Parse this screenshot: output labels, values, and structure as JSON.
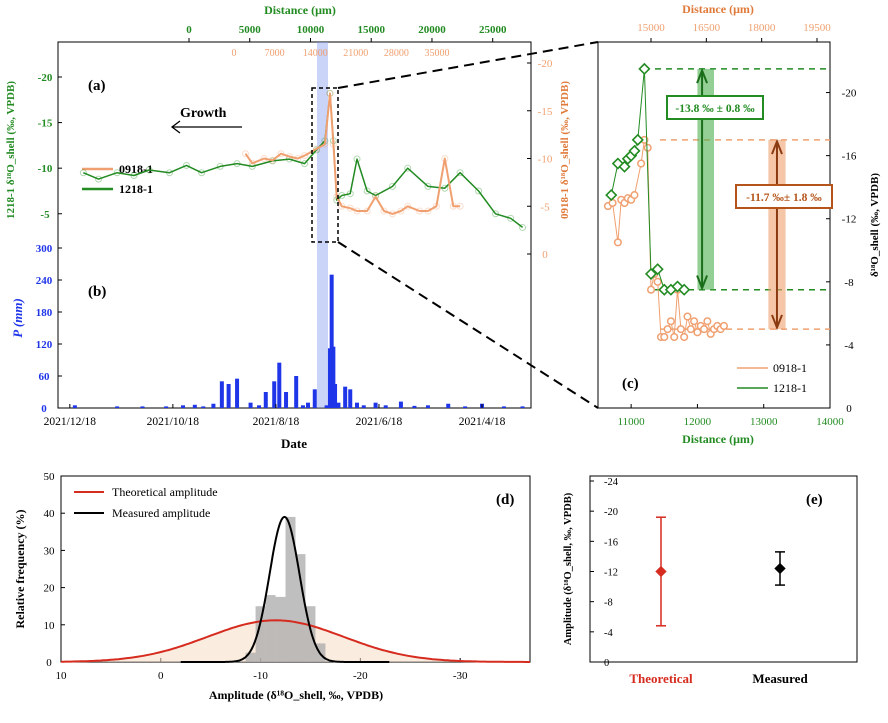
{
  "colors": {
    "c0918": "#f0a070",
    "c1218": "#228b22",
    "precip": "#1f35e8",
    "shade": "#8a9df0",
    "red": "#d62b1f",
    "black": "#000000",
    "amp_green_bar": "#4caf50",
    "amp_orange_bar": "#f0a070",
    "label_orange_text": "#b5541a"
  },
  "chart_data": [
    {
      "id": "a",
      "panel_label": "(a)",
      "type": "line",
      "x_top_label": "Distance (μm)",
      "x_top_ticks": [
        "0",
        "5000",
        "10000",
        "15000",
        "20000",
        "25000"
      ],
      "x_top2_ticks": [
        "0",
        "7000",
        "14000",
        "21000",
        "28000",
        "35000"
      ],
      "y_left_label": "1218-1 δ¹⁸O_shell (‰, VPDB)",
      "y_left_ticks": [
        "-20",
        "-15",
        "-10",
        "-5"
      ],
      "y_right_label": "0918-1 δ¹⁸O_shell (‰, VPDB)",
      "y_right_ticks": [
        "-20",
        "-15",
        "-10",
        "-5",
        "0"
      ],
      "annotation_growth": "Growth",
      "legend": [
        "0918-1",
        "1218-1"
      ],
      "series_1218": {
        "name": "1218-1",
        "x_date": [
          "2021-12-10",
          "2021-12-01",
          "2021-11-20",
          "2021-11-10",
          "2021-11-01",
          "2021-10-20",
          "2021-10-10",
          "2021-10-01",
          "2021-09-20",
          "2021-09-10",
          "2021-09-01",
          "2021-08-20",
          "2021-08-10",
          "2021-08-01",
          "2021-07-25",
          "2021-07-20",
          "2021-07-17",
          "2021-07-15",
          "2021-07-13",
          "2021-07-10",
          "2021-07-05",
          "2021-07-01",
          "2021-06-25",
          "2021-06-20",
          "2021-06-10",
          "2021-06-01",
          "2021-05-20",
          "2021-05-10",
          "2021-05-01",
          "2021-04-20",
          "2021-04-10",
          "2021-04-01",
          "2021-03-25"
        ],
        "y": [
          -9.5,
          -8.8,
          -9.5,
          -9.2,
          -9.8,
          -9.5,
          -10.3,
          -9.5,
          -10.2,
          -10.5,
          -10.2,
          -10.8,
          -11.0,
          -10.5,
          -12.0,
          -13.0,
          -18.2,
          -13.0,
          -6.5,
          -7.0,
          -7.2,
          -11.0,
          -7.5,
          -7.0,
          -8.0,
          -10.0,
          -8.0,
          -7.8,
          -9.5,
          -7.5,
          -5.0,
          -4.5,
          -3.5
        ]
      },
      "series_0918": {
        "name": "0918-1",
        "x_date": [
          "2021-09-05",
          "2021-09-01",
          "2021-08-25",
          "2021-08-20",
          "2021-08-15",
          "2021-08-10",
          "2021-08-05",
          "2021-08-01",
          "2021-07-25",
          "2021-07-20",
          "2021-07-17",
          "2021-07-15",
          "2021-07-13",
          "2021-07-10",
          "2021-07-05",
          "2021-07-01",
          "2021-06-25",
          "2021-06-20",
          "2021-06-15",
          "2021-06-10",
          "2021-06-05",
          "2021-06-01",
          "2021-05-25",
          "2021-05-20",
          "2021-05-15",
          "2021-05-10",
          "2021-05-05",
          "2021-05-01"
        ],
        "y": [
          -10.5,
          -9.5,
          -10.0,
          -9.8,
          -10.5,
          -10.2,
          -10.0,
          -10.3,
          -11.0,
          -11.5,
          -16.8,
          -11.5,
          -6.0,
          -5.0,
          -4.8,
          -4.5,
          -4.5,
          -6.0,
          -4.5,
          -4.2,
          -4.5,
          -5.0,
          -4.5,
          -4.5,
          -5.0,
          -10.0,
          -5.0,
          -5.0
        ]
      }
    },
    {
      "id": "b",
      "panel_label": "(b)",
      "type": "bar",
      "ylabel": "P (mm)",
      "ylim": [
        0,
        300
      ],
      "y_ticks": [
        "0",
        "60",
        "120",
        "180",
        "240",
        "300"
      ],
      "xlabel": "Date",
      "x_ticks": [
        "2021/12/18",
        "2021/10/18",
        "2021/8/18",
        "2021/6/18",
        "2021/4/18"
      ],
      "x_date_range": [
        "2021-12-25",
        "2021-03-20"
      ],
      "x_date": [
        "2021-12-15",
        "2021-11-20",
        "2021-11-05",
        "2021-10-22",
        "2021-10-12",
        "2021-10-05",
        "2021-09-30",
        "2021-09-24",
        "2021-09-19",
        "2021-09-15",
        "2021-09-10",
        "2021-09-02",
        "2021-08-28",
        "2021-08-24",
        "2021-08-19",
        "2021-08-16",
        "2021-08-12",
        "2021-08-06",
        "2021-08-02",
        "2021-07-30",
        "2021-07-26",
        "2021-07-19",
        "2021-07-17",
        "2021-07-16",
        "2021-07-15",
        "2021-07-14",
        "2021-07-12",
        "2021-07-08",
        "2021-07-05",
        "2021-07-01",
        "2021-06-27",
        "2021-06-20",
        "2021-06-14",
        "2021-06-05",
        "2021-05-28",
        "2021-05-20",
        "2021-05-08",
        "2021-04-28",
        "2021-04-18",
        "2021-04-05",
        "2021-03-25"
      ],
      "values": [
        5,
        3,
        3,
        3,
        5,
        6,
        3,
        8,
        50,
        45,
        55,
        10,
        5,
        30,
        50,
        85,
        30,
        60,
        5,
        10,
        35,
        5,
        112,
        250,
        115,
        45,
        10,
        40,
        35,
        10,
        5,
        10,
        5,
        12,
        4,
        5,
        8,
        3,
        8,
        3,
        3
      ]
    },
    {
      "id": "c",
      "panel_label": "(c)",
      "type": "line",
      "x_bottom_label": "Distance (μm)",
      "x_bottom_ticks": [
        "11000",
        "12000",
        "13000",
        "14000"
      ],
      "xlim_bottom": [
        10500,
        14000
      ],
      "x_top_label": "Distance (μm)",
      "x_top_ticks": [
        "15000",
        "16500",
        "18000",
        "19500"
      ],
      "y_right_label": "δ¹⁸O_shell (‰, VPDB)",
      "y_ticks": [
        "-20",
        "-16",
        "-12",
        "-8",
        "-4",
        "0"
      ],
      "ylim": [
        0,
        -22
      ],
      "legend": [
        "0918-1",
        "1218-1"
      ],
      "series_1218": {
        "name": "1218-1",
        "x": [
          10700,
          10800,
          10900,
          10950,
          11000,
          11050,
          11100,
          11200,
          11300,
          11400,
          11500,
          11600,
          11700,
          11800
        ],
        "y": [
          -13.5,
          -15.5,
          -15.3,
          -15.8,
          -16.0,
          -16.3,
          -17.0,
          -21.5,
          -8.5,
          -8.8,
          -7.5,
          -7.5,
          -7.7,
          -7.5
        ]
      },
      "series_0918": {
        "name": "0918-1",
        "x": [
          10650,
          10720,
          10800,
          10850,
          10900,
          10950,
          11000,
          11050,
          11150,
          11200,
          11250,
          11300,
          11350,
          11400,
          11450,
          11500,
          11550,
          11600,
          11650,
          11700,
          11750,
          11800,
          11850,
          11900,
          11950,
          12000,
          12050,
          12100,
          12150,
          12200,
          12250,
          12300,
          12350,
          12400
        ],
        "y": [
          -12.8,
          -13.0,
          -10.5,
          -13.2,
          -13.0,
          -13.3,
          -13.2,
          -13.5,
          -15.5,
          -17.0,
          -16.5,
          -7.5,
          -8.5,
          -8.0,
          -4.5,
          -4.5,
          -5.0,
          -5.5,
          -4.5,
          -7.5,
          -5.0,
          -4.5,
          -5.8,
          -5.0,
          -5.5,
          -4.8,
          -5.2,
          -5.0,
          -5.5,
          -4.7,
          -5.0,
          -5.2,
          -5.0,
          -5.2
        ]
      },
      "amp_1218_label": "-13.8 ‰ ± 0.8 ‰",
      "amp_0918_label": "-11.7 ‰± 1.8 ‰",
      "ref_lines_y": [
        -21.5,
        -17.0,
        -7.5,
        -5.0
      ]
    },
    {
      "id": "d",
      "panel_label": "(d)",
      "type": "area",
      "ylabel": "Relative frequency (%)",
      "ylim": [
        0,
        50
      ],
      "y_ticks": [
        "0",
        "10",
        "20",
        "30",
        "40",
        "50"
      ],
      "xlabel": "Amplitude (δ¹⁸O_shell, ‰, VPDB)",
      "x_ticks": [
        "10",
        "0",
        "-10",
        "-20",
        "-30"
      ],
      "xlim": [
        10,
        -37
      ],
      "series": [
        {
          "name": "Theoretical amplitude",
          "mean": -11.5,
          "sd": 6.8,
          "peak": 11.2
        },
        {
          "name": "Measured amplitude",
          "mean": -12.4,
          "sd": 1.5,
          "peak": 39
        }
      ],
      "hist_bins": [
        -9,
        -10,
        -11,
        -12,
        -13,
        -14,
        -15,
        -16
      ],
      "hist_values": [
        2.5,
        15,
        18,
        17.5,
        39,
        29,
        15,
        5
      ]
    },
    {
      "id": "e",
      "panel_label": "(e)",
      "type": "scatter",
      "ylabel": "Amplitude (δ¹⁸O_shell, ‰, VPDB)",
      "ylim": [
        0,
        -24
      ],
      "y_ticks": [
        "-24",
        "-20",
        "-16",
        "-12",
        "-8",
        "-4",
        "0"
      ],
      "categories": [
        "Theoretical",
        "Measured"
      ],
      "values": [
        -12.0,
        -12.4
      ],
      "errors": [
        7.2,
        2.2
      ]
    }
  ]
}
